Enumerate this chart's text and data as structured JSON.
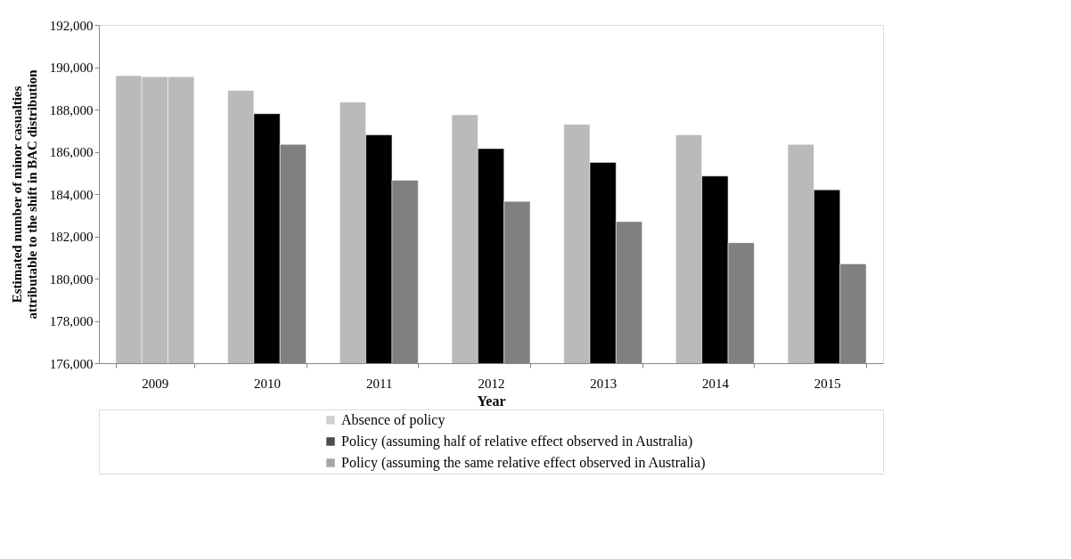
{
  "chart_data": {
    "type": "bar",
    "xlabel": "Year",
    "ylabel": "Estimated number of minor casualties attributable to the shift in BAC distribution",
    "categories": [
      "2009",
      "2010",
      "2011",
      "2012",
      "2013",
      "2014",
      "2015"
    ],
    "series": [
      {
        "name": "Absence of policy",
        "color": "#bababa",
        "values": [
          189600,
          188900,
          188350,
          187750,
          187300,
          186800,
          186350
        ]
      },
      {
        "name": "Policy (assuming half of relative effect observed in Australia)",
        "color": "#000000",
        "colors": [
          "#bababa",
          "#000000",
          "#000000",
          "#000000",
          "#000000",
          "#000000",
          "#000000"
        ],
        "values": [
          189550,
          187800,
          186800,
          186150,
          185500,
          184850,
          184200
        ]
      },
      {
        "name": "Policy (assuming the same relative effect observed in Australia)",
        "color": "#808080",
        "colors": [
          "#bababa",
          "#808080",
          "#808080",
          "#808080",
          "#808080",
          "#808080",
          "#808080"
        ],
        "values": [
          189550,
          186350,
          184650,
          183650,
          182700,
          181700,
          180700
        ]
      }
    ],
    "ylim": [
      176000,
      192000
    ],
    "yticks": [
      {
        "value": 176000,
        "label": "176,000"
      },
      {
        "value": 178000,
        "label": "178,000"
      },
      {
        "value": 180000,
        "label": "180,000"
      },
      {
        "value": 182000,
        "label": "182,000"
      },
      {
        "value": 184000,
        "label": "184,000"
      },
      {
        "value": 186000,
        "label": "186,000"
      },
      {
        "value": 188000,
        "label": "188,000"
      },
      {
        "value": 190000,
        "label": "190,000"
      },
      {
        "value": 192000,
        "label": "192,000"
      }
    ],
    "grid": false,
    "legend": "bottom"
  }
}
